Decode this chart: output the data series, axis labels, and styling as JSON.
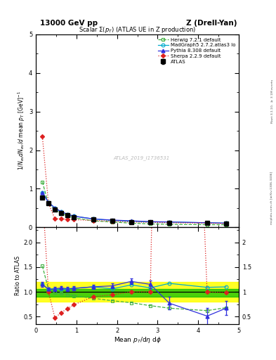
{
  "title_left": "13000 GeV pp",
  "title_right": "Z (Drell-Yan)",
  "plot_title": "Scalar $\\Sigma(p_T)$ (ATLAS UE in Z production)",
  "ylabel_main": "$1/N_{ev} dN_{ev}/d$ mean $p_T$ [GeV]$^{-1}$",
  "ylabel_ratio": "Ratio to ATLAS",
  "xlabel": "Mean $p_T$/d$\\eta$ d$\\phi$",
  "watermark": "ATLAS_2019_I1736531",
  "right_label_top": "Rivet 3.1.10, $\\geq$ 3.1M events",
  "right_label_bot": "mcplots.cern.ch [arXiv:1306.3436]",
  "atlas_x": [
    0.16,
    0.31,
    0.47,
    0.62,
    0.78,
    0.94,
    1.41,
    1.88,
    2.35,
    2.82,
    3.29,
    4.22,
    4.69
  ],
  "atlas_y": [
    0.78,
    0.62,
    0.47,
    0.38,
    0.32,
    0.27,
    0.2,
    0.17,
    0.14,
    0.13,
    0.12,
    0.11,
    0.1
  ],
  "atlas_yerr": [
    0.03,
    0.02,
    0.015,
    0.01,
    0.009,
    0.008,
    0.006,
    0.005,
    0.005,
    0.005,
    0.005,
    0.005,
    0.005
  ],
  "herwig_x": [
    0.16,
    0.31,
    0.47,
    0.62,
    0.78,
    0.94,
    1.41,
    1.88,
    2.35,
    2.82,
    3.29,
    4.22,
    4.69
  ],
  "herwig_y": [
    1.18,
    0.6,
    0.46,
    0.36,
    0.3,
    0.25,
    0.17,
    0.14,
    0.11,
    0.09,
    0.08,
    0.07,
    0.07
  ],
  "madgraph_x": [
    0.16,
    0.31,
    0.47,
    0.62,
    0.78,
    0.94,
    1.41,
    1.88,
    2.35,
    2.82,
    3.29,
    4.22,
    4.69
  ],
  "madgraph_y": [
    0.9,
    0.65,
    0.5,
    0.4,
    0.34,
    0.29,
    0.22,
    0.18,
    0.16,
    0.14,
    0.14,
    0.12,
    0.11
  ],
  "pythia_x": [
    0.16,
    0.31,
    0.47,
    0.62,
    0.78,
    0.94,
    1.41,
    1.88,
    2.35,
    2.82,
    3.29,
    4.22,
    4.69
  ],
  "pythia_y": [
    0.9,
    0.65,
    0.5,
    0.41,
    0.34,
    0.29,
    0.22,
    0.19,
    0.17,
    0.15,
    0.14,
    0.12,
    0.11
  ],
  "sherpa_x": [
    0.16,
    0.31,
    0.47,
    0.62,
    0.78,
    0.94,
    1.41,
    1.88,
    2.35,
    2.82,
    3.29,
    4.22,
    4.69
  ],
  "sherpa_y": [
    2.35,
    0.62,
    0.22,
    0.22,
    0.21,
    0.2,
    0.18,
    0.16,
    0.14,
    0.13,
    0.12,
    0.11,
    0.1
  ],
  "ratio_herwig_x": [
    0.16,
    0.31,
    0.47,
    0.62,
    0.78,
    0.94,
    1.41,
    1.88,
    2.35,
    2.82,
    3.29,
    4.22,
    4.69
  ],
  "ratio_herwig_y": [
    1.52,
    1.05,
    0.98,
    0.97,
    0.95,
    0.92,
    0.87,
    0.82,
    0.78,
    0.72,
    0.67,
    0.62,
    0.68
  ],
  "ratio_madgraph_x": [
    0.16,
    0.31,
    0.47,
    0.62,
    0.78,
    0.94,
    1.41,
    1.88,
    2.35,
    2.82,
    3.29,
    4.22,
    4.69
  ],
  "ratio_madgraph_y": [
    1.15,
    1.05,
    1.06,
    1.05,
    1.06,
    1.07,
    1.1,
    1.06,
    1.14,
    1.08,
    1.17,
    1.09,
    1.1
  ],
  "ratio_pythia_x": [
    0.16,
    0.31,
    0.47,
    0.62,
    0.78,
    0.94,
    1.41,
    1.88,
    2.35,
    2.82,
    3.29,
    4.22,
    4.69
  ],
  "ratio_pythia_y": [
    1.15,
    1.05,
    1.06,
    1.08,
    1.06,
    1.07,
    1.1,
    1.12,
    1.21,
    1.15,
    0.77,
    0.51,
    0.67
  ],
  "ratio_pythia_yerr": [
    0.05,
    0.04,
    0.04,
    0.04,
    0.04,
    0.04,
    0.04,
    0.05,
    0.06,
    0.08,
    0.13,
    0.17,
    0.14
  ],
  "ratio_sherpa_x": [
    0.16,
    0.31,
    0.47,
    0.62,
    0.78,
    0.94,
    1.41,
    1.88,
    2.35,
    2.82,
    3.29,
    4.22,
    4.69
  ],
  "ratio_sherpa_y": [
    3.0,
    1.0,
    0.47,
    0.58,
    0.66,
    0.74,
    0.9,
    0.94,
    1.0,
    1.0,
    20.0,
    1.0,
    0.98
  ],
  "ylim_main": [
    0.0,
    5.0
  ],
  "ylim_ratio": [
    0.35,
    2.3
  ],
  "xlim": [
    0.0,
    5.0
  ],
  "color_atlas": "#000000",
  "color_herwig": "#40b040",
  "color_madgraph": "#00aacc",
  "color_pythia": "#3030dd",
  "color_sherpa": "#dd2020",
  "band_yellow": "#ffff00",
  "band_green": "#00bb00"
}
